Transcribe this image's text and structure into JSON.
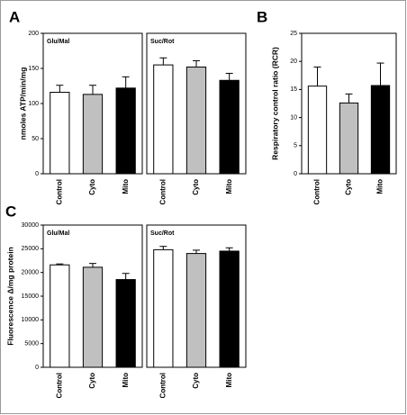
{
  "chart_data": [
    {
      "type": "bar",
      "panel": "A",
      "title": "Glu/Mal",
      "ylabel": "nmoles ATP/min/mg",
      "categories": [
        "Control",
        "Cyto",
        "Mito"
      ],
      "values": [
        116,
        113,
        122
      ],
      "errors": [
        10,
        13,
        16
      ],
      "colors": [
        "#ffffff",
        "#c0c0c0",
        "#000000"
      ],
      "ylim": [
        0,
        200
      ],
      "yticks": [
        0,
        50,
        100,
        150,
        200
      ]
    },
    {
      "type": "bar",
      "title": "Suc/Rot",
      "categories": [
        "Control",
        "Cyto",
        "Mito"
      ],
      "values": [
        155,
        152,
        133
      ],
      "errors": [
        10,
        9,
        10
      ],
      "colors": [
        "#ffffff",
        "#c0c0c0",
        "#000000"
      ],
      "ylim": [
        0,
        200
      ]
    },
    {
      "type": "bar",
      "panel": "B",
      "ylabel": "Respiratory control ratio (RCR)",
      "categories": [
        "Control",
        "Cyto",
        "Mito"
      ],
      "values": [
        15.6,
        12.6,
        15.7
      ],
      "errors": [
        3.4,
        1.6,
        4.0
      ],
      "colors": [
        "#ffffff",
        "#c0c0c0",
        "#000000"
      ],
      "ylim": [
        0,
        25
      ],
      "yticks": [
        0,
        5,
        10,
        15,
        20,
        25
      ]
    },
    {
      "type": "bar",
      "panel": "C",
      "title": "Glu/Mal",
      "ylabel": "Fluorescence Δ/mg protein",
      "categories": [
        "Control",
        "Cyto",
        "Mito"
      ],
      "values": [
        21600,
        21100,
        18500
      ],
      "errors": [
        200,
        800,
        1300
      ],
      "colors": [
        "#ffffff",
        "#c0c0c0",
        "#000000"
      ],
      "ylim": [
        0,
        30000
      ],
      "yticks": [
        0,
        5000,
        10000,
        15000,
        20000,
        25000,
        30000
      ]
    },
    {
      "type": "bar",
      "title": "Suc/Rot",
      "categories": [
        "Control",
        "Cyto",
        "Mito"
      ],
      "values": [
        24800,
        24000,
        24500
      ],
      "errors": [
        700,
        700,
        700
      ],
      "colors": [
        "#ffffff",
        "#c0c0c0",
        "#000000"
      ],
      "ylim": [
        0,
        30000
      ]
    }
  ]
}
